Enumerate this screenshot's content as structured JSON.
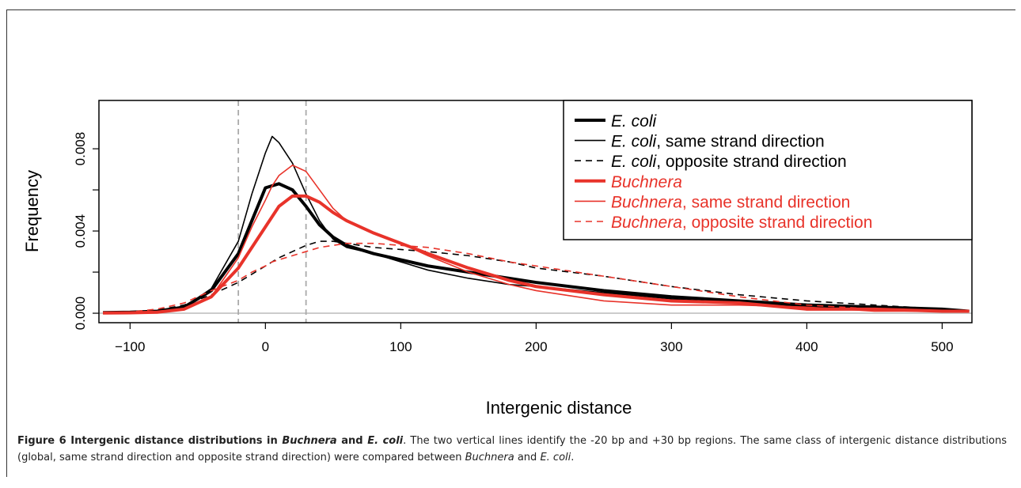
{
  "chart_data": {
    "type": "line",
    "xlabel": "Intergenic distance",
    "ylabel": "Frequency",
    "xlim": [
      -123,
      522
    ],
    "ylim": [
      -0.00046,
      0.01035
    ],
    "xticks": [
      {
        "value": -100,
        "label": "−100"
      },
      0,
      100,
      200,
      300,
      400,
      500
    ],
    "yticks": [
      {
        "value": 0,
        "label": "0.000"
      },
      {
        "value": 0.004,
        "label": "0.004"
      },
      {
        "value": 0.008,
        "label": "0.008"
      }
    ],
    "yminorticks": [
      0.002,
      0.006
    ],
    "vlines": [
      -20,
      30
    ],
    "hline": 0,
    "legend": "top-right",
    "x": [
      -120,
      -100,
      -80,
      -60,
      -40,
      -20,
      -10,
      0,
      5,
      10,
      20,
      30,
      40,
      50,
      60,
      80,
      100,
      120,
      150,
      180,
      200,
      250,
      300,
      350,
      400,
      450,
      500,
      520
    ],
    "series": [
      {
        "name": "E. coli",
        "color": "#000000",
        "width": 4,
        "dashed": false,
        "values": [
          3e-05,
          5e-05,
          0.0001,
          0.0003,
          0.0011,
          0.0029,
          0.0045,
          0.0061,
          0.0062,
          0.0063,
          0.006,
          0.0052,
          0.0043,
          0.0037,
          0.0033,
          0.0029,
          0.0026,
          0.0023,
          0.002,
          0.0017,
          0.0015,
          0.0011,
          0.0008,
          0.0006,
          0.0004,
          0.0003,
          0.0002,
          0.0001
        ]
      },
      {
        "name": "E. coli, same strand direction",
        "color": "#000000",
        "width": 1.6,
        "dashed": false,
        "values": [
          2e-05,
          4e-05,
          0.0001,
          0.0003,
          0.0012,
          0.0035,
          0.0058,
          0.0078,
          0.0086,
          0.0083,
          0.0073,
          0.0058,
          0.0045,
          0.0036,
          0.0032,
          0.0029,
          0.0025,
          0.0021,
          0.0017,
          0.0014,
          0.0013,
          0.001,
          0.0007,
          0.0005,
          0.0003,
          0.0002,
          0.0001,
          0.0001
        ]
      },
      {
        "name": "E. coli, opposite strand direction",
        "color": "#000000",
        "width": 1.6,
        "dashed": true,
        "values": [
          2e-05,
          5e-05,
          0.00015,
          0.0004,
          0.0009,
          0.0015,
          0.0019,
          0.0023,
          0.0025,
          0.0027,
          0.003,
          0.0033,
          0.0035,
          0.0035,
          0.0034,
          0.0032,
          0.0031,
          0.003,
          0.0028,
          0.0025,
          0.0022,
          0.0018,
          0.0013,
          0.0009,
          0.0006,
          0.0004,
          0.0002,
          0.0001
        ]
      },
      {
        "name": "Buchnera",
        "color": "#e8332a",
        "width": 4,
        "dashed": false,
        "values": [
          1e-05,
          2e-05,
          5e-05,
          0.0002,
          0.0008,
          0.0022,
          0.0032,
          0.0042,
          0.0047,
          0.0052,
          0.0057,
          0.0057,
          0.0054,
          0.0049,
          0.0045,
          0.0039,
          0.0034,
          0.0029,
          0.0022,
          0.0016,
          0.0013,
          0.0009,
          0.0006,
          0.0005,
          0.0002,
          0.0002,
          0.0001,
          0.0001
        ]
      },
      {
        "name": "Buchnera, same strand direction",
        "color": "#e8332a",
        "width": 1.6,
        "dashed": false,
        "values": [
          1e-05,
          2e-05,
          5e-05,
          0.0002,
          0.0008,
          0.0027,
          0.0042,
          0.0055,
          0.0062,
          0.0067,
          0.0072,
          0.0069,
          0.006,
          0.0051,
          0.0045,
          0.0039,
          0.0034,
          0.0028,
          0.002,
          0.0014,
          0.0011,
          0.0006,
          0.0004,
          0.0004,
          0.0003,
          0.0001,
          0.0001,
          0.0001
        ]
      },
      {
        "name": "Buchnera, opposite strand direction",
        "color": "#e8332a",
        "width": 1.6,
        "dashed": true,
        "values": [
          2e-05,
          6e-05,
          0.0002,
          0.0005,
          0.0011,
          0.0016,
          0.002,
          0.0023,
          0.0025,
          0.0026,
          0.0028,
          0.003,
          0.0032,
          0.0033,
          0.0034,
          0.0034,
          0.0033,
          0.0032,
          0.0029,
          0.0025,
          0.0023,
          0.0018,
          0.0013,
          0.0008,
          0.0004,
          0.0002,
          0.0001,
          0.0001
        ]
      }
    ],
    "caption": [
      {
        "text": "Figure 6 Intergenic distance distributions in ",
        "bold": true,
        "italic": false
      },
      {
        "text": "Buchnera",
        "bold": true,
        "italic": true
      },
      {
        "text": " and ",
        "bold": true,
        "italic": false
      },
      {
        "text": "E. coli",
        "bold": true,
        "italic": true
      },
      {
        "text": ". The two vertical lines identify the -20 bp and +30 bp regions. The same class of intergenic distance distributions (global, same strand direction and opposite strand direction) were compared between ",
        "bold": false,
        "italic": false
      },
      {
        "text": "Buchnera",
        "bold": false,
        "italic": true
      },
      {
        "text": " and ",
        "bold": false,
        "italic": false
      },
      {
        "text": "E. coli",
        "bold": false,
        "italic": true
      },
      {
        "text": ".",
        "bold": false,
        "italic": false
      }
    ]
  }
}
